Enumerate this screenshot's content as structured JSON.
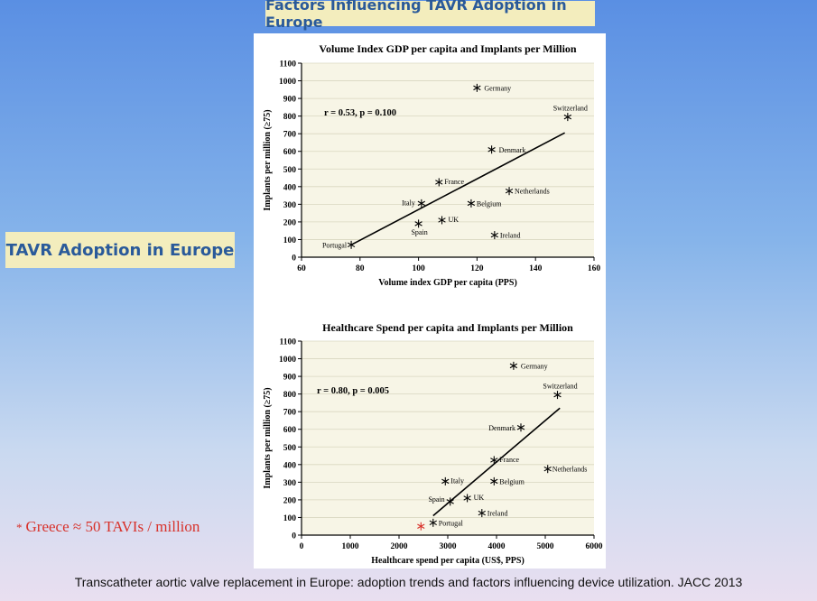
{
  "slide": {
    "title": "Factors Influencing TAVR Adoption in Europe",
    "side_label": "TAVR Adoption in Europe",
    "greece_star": "*",
    "greece_note": "Greece ≈ 50 TAVIs / million",
    "citation": "Transcatheter aortic valve replacement in Europe: adoption trends and factors influencing device utilization. JACC 2013"
  },
  "colors": {
    "title_bg": "#f3edbd",
    "title_text": "#2a5a9a",
    "greece": "#d8312a",
    "plot_bg": "#f7f5e6"
  },
  "chart_data": [
    {
      "type": "scatter",
      "title": "Volume Index GDP per capita and Implants per Million",
      "xlabel": "Volume index GDP per capita (PPS)",
      "ylabel": "Implants per million (≥75)",
      "xlim": [
        60,
        160
      ],
      "ylim": [
        0,
        1100
      ],
      "xticks": [
        60,
        80,
        100,
        120,
        140,
        160
      ],
      "yticks": [
        0,
        100,
        200,
        300,
        400,
        500,
        600,
        700,
        800,
        900,
        1000,
        1100
      ],
      "grid": true,
      "annotation": "r = 0.53, p = 0.100",
      "points": [
        {
          "label": "Germany",
          "x": 120,
          "y": 960
        },
        {
          "label": "Switzerland",
          "x": 151,
          "y": 795
        },
        {
          "label": "Denmark",
          "x": 125,
          "y": 610
        },
        {
          "label": "France",
          "x": 107,
          "y": 425
        },
        {
          "label": "Netherlands",
          "x": 131,
          "y": 375
        },
        {
          "label": "Italy",
          "x": 101,
          "y": 305
        },
        {
          "label": "Belgium",
          "x": 118,
          "y": 305
        },
        {
          "label": "UK",
          "x": 108,
          "y": 210
        },
        {
          "label": "Spain",
          "x": 100,
          "y": 190
        },
        {
          "label": "Ireland",
          "x": 126,
          "y": 125
        },
        {
          "label": "Portugal",
          "x": 77,
          "y": 70
        }
      ],
      "trend_line": {
        "x": [
          77,
          150
        ],
        "y": [
          70,
          705
        ]
      }
    },
    {
      "type": "scatter",
      "title": "Healthcare Spend per capita and Implants per Million",
      "xlabel": "Healthcare spend per capita (US$, PPS)",
      "ylabel": "Implants per million (≥75)",
      "xlim": [
        0,
        6000
      ],
      "ylim": [
        0,
        1100
      ],
      "xticks": [
        0,
        1000,
        2000,
        3000,
        4000,
        5000,
        6000
      ],
      "yticks": [
        0,
        100,
        200,
        300,
        400,
        500,
        600,
        700,
        800,
        900,
        1000,
        1100
      ],
      "grid": true,
      "annotation": "r = 0.80, p = 0.005",
      "points": [
        {
          "label": "Germany",
          "x": 4350,
          "y": 960
        },
        {
          "label": "Switzerland",
          "x": 5250,
          "y": 795
        },
        {
          "label": "Denmark",
          "x": 4500,
          "y": 610
        },
        {
          "label": "France",
          "x": 3950,
          "y": 425
        },
        {
          "label": "Netherlands",
          "x": 5050,
          "y": 375
        },
        {
          "label": "Italy",
          "x": 2950,
          "y": 305
        },
        {
          "label": "Belgium",
          "x": 3950,
          "y": 305
        },
        {
          "label": "UK",
          "x": 3400,
          "y": 210
        },
        {
          "label": "Spain",
          "x": 3050,
          "y": 190
        },
        {
          "label": "Ireland",
          "x": 3700,
          "y": 125
        },
        {
          "label": "Portugal",
          "x": 2700,
          "y": 70
        }
      ],
      "highlight_point": {
        "label": "Greece",
        "x": 2450,
        "y": 50,
        "color": "#d8312a"
      },
      "trend_line": {
        "x": [
          2700,
          5300
        ],
        "y": [
          110,
          720
        ]
      }
    }
  ]
}
